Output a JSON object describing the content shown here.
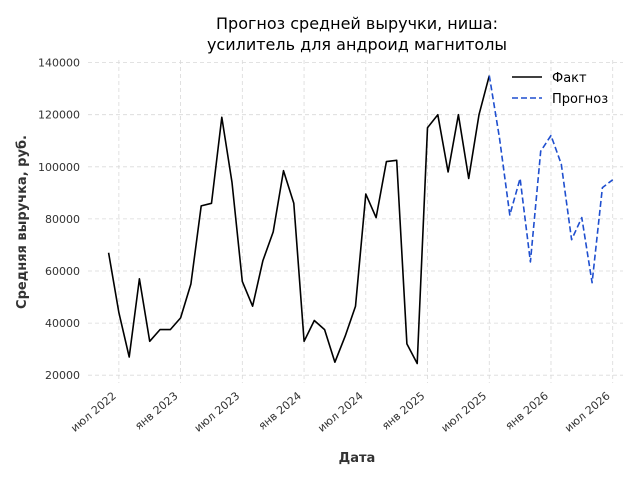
{
  "chart_data": {
    "type": "line",
    "title_lines": [
      "Прогноз средней выручки, ниша:",
      "усилитель для андроид магнитолы"
    ],
    "xlabel": "Дата",
    "ylabel": "Средняя выручка, руб.",
    "x_start": "2022-06",
    "x_range": [
      "2022-04",
      "2026-08"
    ],
    "ylim": [
      17000,
      141000
    ],
    "yticks": [
      20000,
      40000,
      60000,
      80000,
      100000,
      120000,
      140000
    ],
    "xticks": [
      {
        "month": "2022-07",
        "label": "июл 2022"
      },
      {
        "month": "2023-01",
        "label": "янв 2023"
      },
      {
        "month": "2023-07",
        "label": "июл 2023"
      },
      {
        "month": "2024-01",
        "label": "янв 2024"
      },
      {
        "month": "2024-07",
        "label": "июл 2024"
      },
      {
        "month": "2025-01",
        "label": "янв 2025"
      },
      {
        "month": "2025-07",
        "label": "июл 2025"
      },
      {
        "month": "2026-01",
        "label": "янв 2026"
      },
      {
        "month": "2026-07",
        "label": "июл 2026"
      }
    ],
    "grid": true,
    "legend_position": "top-right",
    "series": [
      {
        "name": "Факт",
        "color": "#000000",
        "dashed": false,
        "start_month": "2022-06",
        "values": [
          67000,
          44000,
          27000,
          57000,
          33000,
          37500,
          37500,
          42000,
          55000,
          85000,
          86000,
          119000,
          94000,
          56000,
          46500,
          64000,
          75000,
          98500,
          86000,
          33000,
          41000,
          37500,
          25000,
          35000,
          46500,
          89500,
          80500,
          102000,
          102500,
          32000,
          24500,
          115000,
          120000,
          98000,
          120000,
          95500,
          120000,
          135000
        ]
      },
      {
        "name": "Прогноз",
        "color": "#1f4fcf",
        "dashed": true,
        "start_month": "2025-07",
        "values": [
          135000,
          111000,
          81500,
          95500,
          63500,
          106000,
          112000,
          101000,
          72000,
          80500,
          55500,
          92000,
          95000
        ]
      }
    ]
  }
}
